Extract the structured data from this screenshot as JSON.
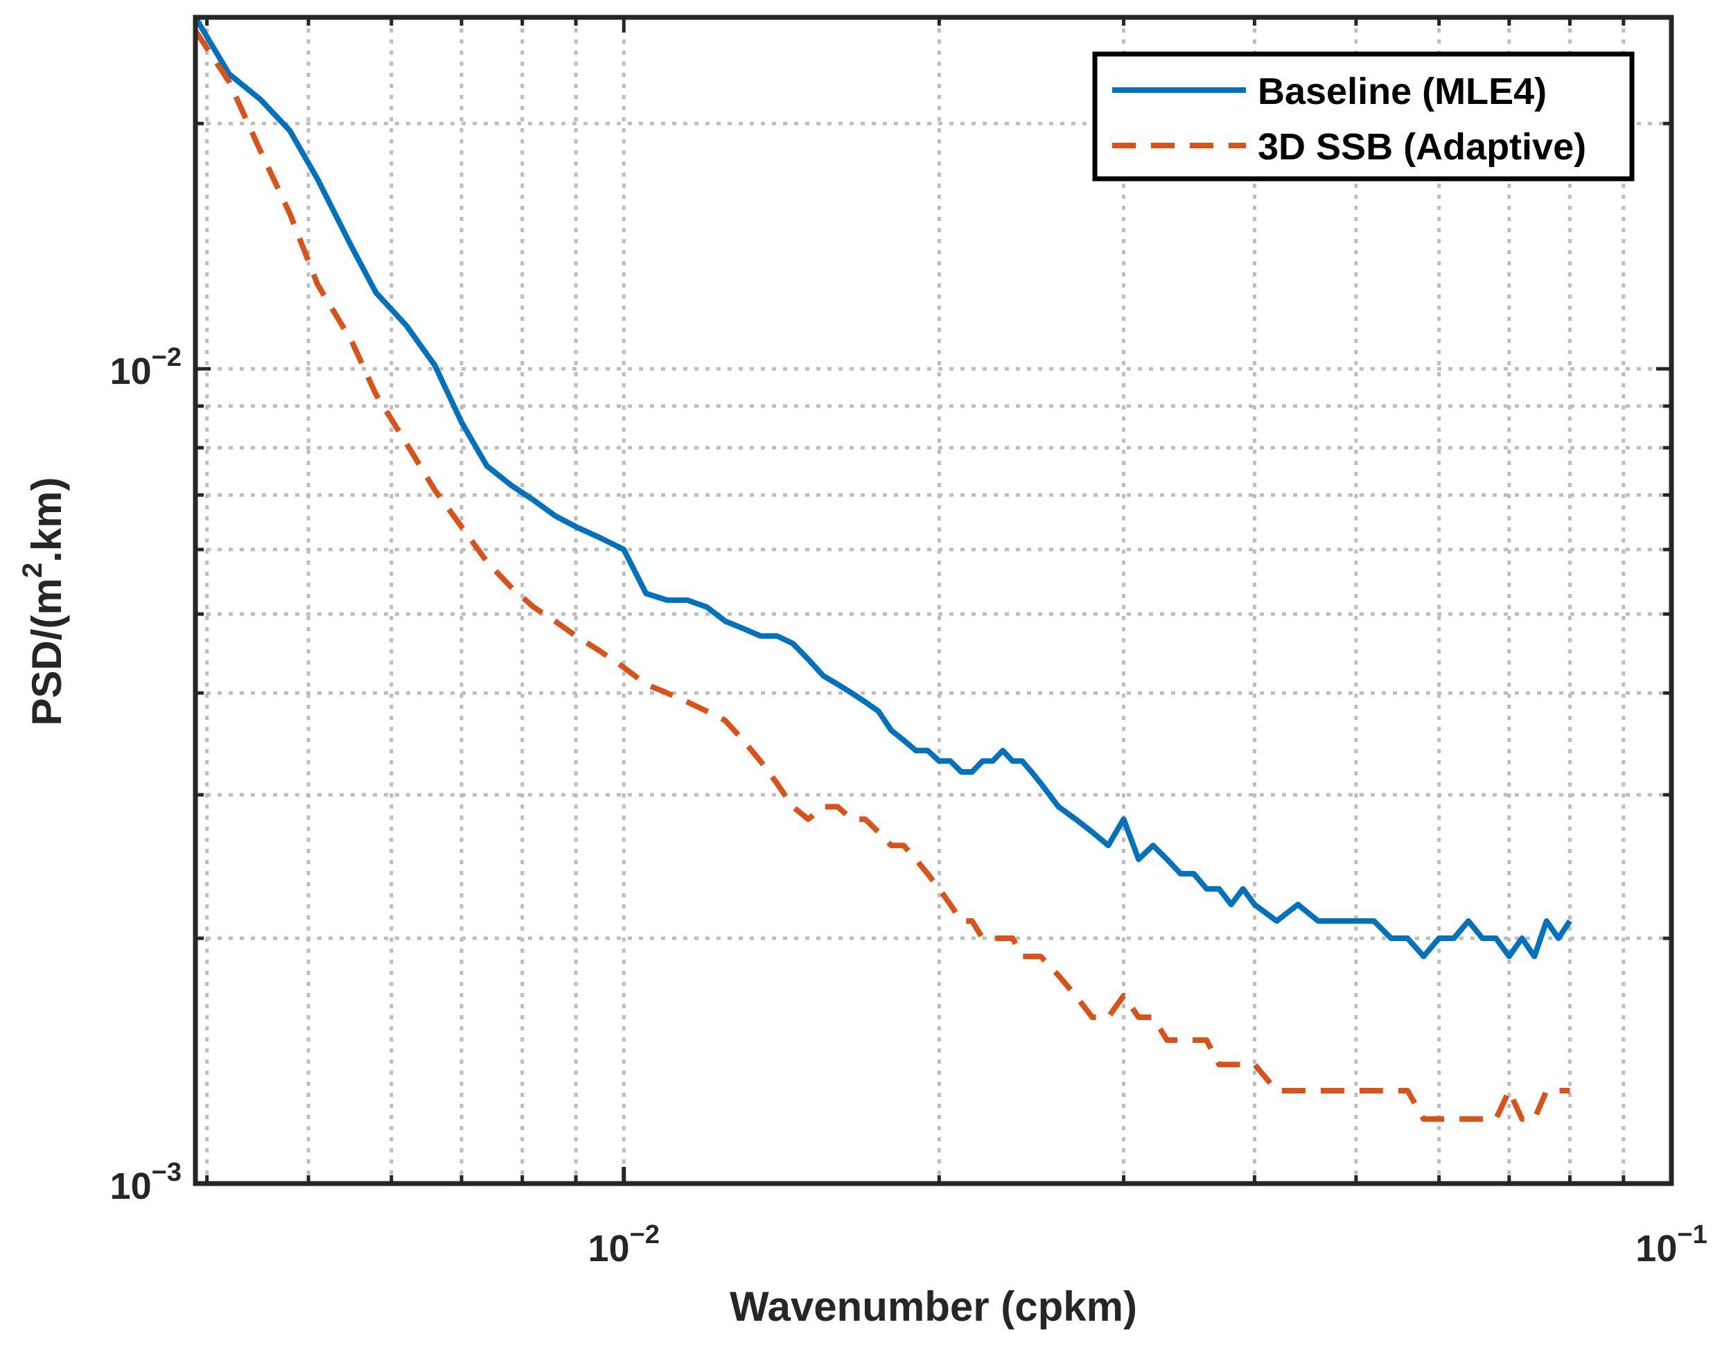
{
  "chart_data": {
    "type": "line",
    "title": "",
    "xlabel": "Wavenumber (cpkm)",
    "ylabel": "PSD/(m^2.km)",
    "ylabel_parts": {
      "prefix": "PSD/(m",
      "sup": "2",
      "suffix": ".km)"
    },
    "xscale": "log",
    "yscale": "log",
    "xlim": [
      0.0039,
      0.1
    ],
    "ylim": [
      0.001,
      0.027
    ],
    "grid": true,
    "legend_position": "top-right",
    "x_ticks": [
      {
        "value": 0.01,
        "base": "10",
        "exp": "−2"
      },
      {
        "value": 0.1,
        "base": "10",
        "exp": "−1"
      }
    ],
    "y_ticks": [
      {
        "value": 0.001,
        "base": "10",
        "exp": "−3"
      },
      {
        "value": 0.01,
        "base": "10",
        "exp": "−2"
      }
    ],
    "colors": {
      "baseline": "#0072BD",
      "ssb": "#D95319",
      "axis": "#262626",
      "grid": "#bdbdbd"
    },
    "series": [
      {
        "name": "Baseline (MLE4)",
        "style": "solid",
        "x": [
          0.0039,
          0.0042,
          0.0045,
          0.0048,
          0.0051,
          0.0055,
          0.0058,
          0.0062,
          0.0066,
          0.007,
          0.0074,
          0.0078,
          0.0082,
          0.0086,
          0.009,
          0.0095,
          0.01,
          0.0105,
          0.011,
          0.0115,
          0.012,
          0.0125,
          0.013,
          0.0135,
          0.014,
          0.0145,
          0.015,
          0.0155,
          0.016,
          0.0165,
          0.017,
          0.0175,
          0.018,
          0.0185,
          0.019,
          0.0195,
          0.02,
          0.0205,
          0.021,
          0.0215,
          0.022,
          0.0225,
          0.023,
          0.0235,
          0.024,
          0.0245,
          0.025,
          0.026,
          0.027,
          0.028,
          0.029,
          0.03,
          0.031,
          0.032,
          0.033,
          0.034,
          0.035,
          0.036,
          0.037,
          0.038,
          0.039,
          0.04,
          0.042,
          0.044,
          0.046,
          0.048,
          0.05,
          0.052,
          0.054,
          0.056,
          0.058,
          0.06,
          0.062,
          0.064,
          0.066,
          0.068,
          0.07,
          0.072,
          0.074,
          0.076,
          0.078,
          0.08
        ],
        "y": [
          0.027,
          0.023,
          0.0214,
          0.0196,
          0.0171,
          0.0141,
          0.0124,
          0.0113,
          0.0101,
          0.0086,
          0.0076,
          0.0072,
          0.0069,
          0.0066,
          0.0064,
          0.0062,
          0.006,
          0.0053,
          0.0052,
          0.0052,
          0.0051,
          0.0049,
          0.0048,
          0.0047,
          0.0047,
          0.0046,
          0.0044,
          0.0042,
          0.0041,
          0.004,
          0.0039,
          0.0038,
          0.0036,
          0.0035,
          0.0034,
          0.0034,
          0.0033,
          0.0033,
          0.0032,
          0.0032,
          0.0033,
          0.0033,
          0.0034,
          0.0033,
          0.0033,
          0.0032,
          0.0031,
          0.0029,
          0.0028,
          0.0027,
          0.0026,
          0.0028,
          0.0025,
          0.0026,
          0.0025,
          0.0024,
          0.0024,
          0.0023,
          0.0023,
          0.0022,
          0.0023,
          0.0022,
          0.0021,
          0.0022,
          0.0021,
          0.0021,
          0.0021,
          0.0021,
          0.002,
          0.002,
          0.0019,
          0.002,
          0.002,
          0.0021,
          0.002,
          0.002,
          0.0019,
          0.002,
          0.0019,
          0.0021,
          0.002,
          0.0021
        ]
      },
      {
        "name": "3D SSB (Adaptive)",
        "style": "dashed",
        "x": [
          0.0039,
          0.0042,
          0.0045,
          0.0048,
          0.0051,
          0.0055,
          0.0058,
          0.0062,
          0.0066,
          0.007,
          0.0074,
          0.0078,
          0.0082,
          0.0086,
          0.009,
          0.0095,
          0.01,
          0.0105,
          0.011,
          0.0115,
          0.012,
          0.0125,
          0.013,
          0.0135,
          0.014,
          0.0145,
          0.015,
          0.0155,
          0.016,
          0.0165,
          0.017,
          0.0175,
          0.018,
          0.0185,
          0.019,
          0.0195,
          0.02,
          0.0205,
          0.021,
          0.0215,
          0.022,
          0.0225,
          0.023,
          0.0235,
          0.024,
          0.0245,
          0.025,
          0.026,
          0.027,
          0.028,
          0.029,
          0.03,
          0.031,
          0.032,
          0.033,
          0.034,
          0.035,
          0.036,
          0.037,
          0.038,
          0.039,
          0.04,
          0.042,
          0.044,
          0.046,
          0.048,
          0.05,
          0.052,
          0.054,
          0.056,
          0.058,
          0.06,
          0.062,
          0.064,
          0.066,
          0.068,
          0.07,
          0.072,
          0.074,
          0.076,
          0.078,
          0.08
        ],
        "y": [
          0.026,
          0.0225,
          0.0185,
          0.0155,
          0.0127,
          0.0108,
          0.0093,
          0.0081,
          0.0071,
          0.0064,
          0.0058,
          0.0054,
          0.0051,
          0.0049,
          0.0047,
          0.0045,
          0.0043,
          0.0041,
          0.004,
          0.0039,
          0.0038,
          0.0037,
          0.0035,
          0.0033,
          0.0031,
          0.0029,
          0.0028,
          0.0029,
          0.0029,
          0.0028,
          0.0028,
          0.0027,
          0.0026,
          0.0026,
          0.0025,
          0.0024,
          0.0023,
          0.0022,
          0.0021,
          0.0021,
          0.002,
          0.002,
          0.002,
          0.002,
          0.0019,
          0.0019,
          0.0019,
          0.0018,
          0.0017,
          0.0016,
          0.0016,
          0.0017,
          0.0016,
          0.0016,
          0.0015,
          0.0015,
          0.0015,
          0.0015,
          0.0014,
          0.0014,
          0.0014,
          0.0014,
          0.0013,
          0.0013,
          0.0013,
          0.0013,
          0.0013,
          0.0013,
          0.0013,
          0.0013,
          0.0012,
          0.0012,
          0.0012,
          0.0012,
          0.0012,
          0.0012,
          0.0013,
          0.0012,
          0.0012,
          0.0013,
          0.0013,
          0.0013
        ]
      }
    ]
  }
}
